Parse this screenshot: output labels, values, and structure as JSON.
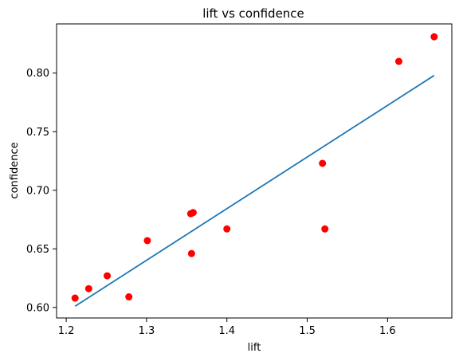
{
  "chart_data": {
    "type": "scatter",
    "title": "lift vs confidence",
    "xlabel": "lift",
    "ylabel": "confidence",
    "xlim": [
      1.188,
      1.68
    ],
    "ylim": [
      0.591,
      0.842
    ],
    "xticks": [
      1.2,
      1.3,
      1.4,
      1.5,
      1.6
    ],
    "xtick_labels": [
      "1.2",
      "1.3",
      "1.4",
      "1.5",
      "1.6"
    ],
    "yticks": [
      0.6,
      0.65,
      0.7,
      0.75,
      0.8
    ],
    "ytick_labels": [
      "0.60",
      "0.65",
      "0.70",
      "0.75",
      "0.80"
    ],
    "grid": false,
    "series": [
      {
        "kind": "scatter",
        "color": "#ff0000",
        "points": [
          {
            "x": 1.211,
            "y": 0.608
          },
          {
            "x": 1.228,
            "y": 0.616
          },
          {
            "x": 1.251,
            "y": 0.627
          },
          {
            "x": 1.278,
            "y": 0.609
          },
          {
            "x": 1.301,
            "y": 0.657
          },
          {
            "x": 1.355,
            "y": 0.68
          },
          {
            "x": 1.358,
            "y": 0.681
          },
          {
            "x": 1.356,
            "y": 0.646
          },
          {
            "x": 1.4,
            "y": 0.667
          },
          {
            "x": 1.519,
            "y": 0.723
          },
          {
            "x": 1.522,
            "y": 0.667
          },
          {
            "x": 1.614,
            "y": 0.81
          },
          {
            "x": 1.658,
            "y": 0.831
          }
        ]
      },
      {
        "kind": "line",
        "color": "#1f77b4",
        "points": [
          {
            "x": 1.211,
            "y": 0.601
          },
          {
            "x": 1.658,
            "y": 0.798
          }
        ]
      }
    ]
  }
}
